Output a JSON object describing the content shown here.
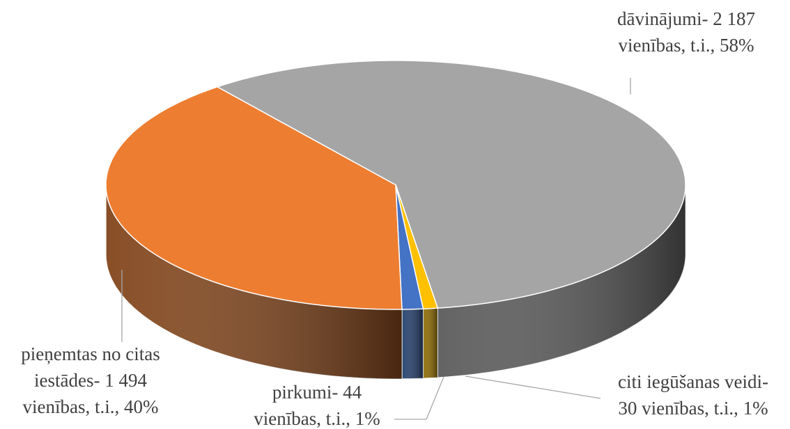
{
  "chart_data": {
    "type": "pie3d",
    "labels": [
      [
        "dāvinājumi- 2 187",
        "vienības, t.i., 58%"
      ],
      [
        "pieņemtas no citas",
        "iestādes- 1 494",
        "vienības, t.i., 40%"
      ],
      [
        "pirkumi- 44",
        "vienības, t.i., 1%"
      ],
      [
        "citi iegūšanas veidi-",
        "30 vienības, t.i., 1%"
      ]
    ],
    "values": [
      2187,
      1494,
      44,
      30
    ],
    "colors": [
      "#a5a5a5",
      "#ed7d31",
      "#4472c4",
      "#ffc000"
    ],
    "order": [
      0,
      3,
      2,
      1
    ]
  }
}
